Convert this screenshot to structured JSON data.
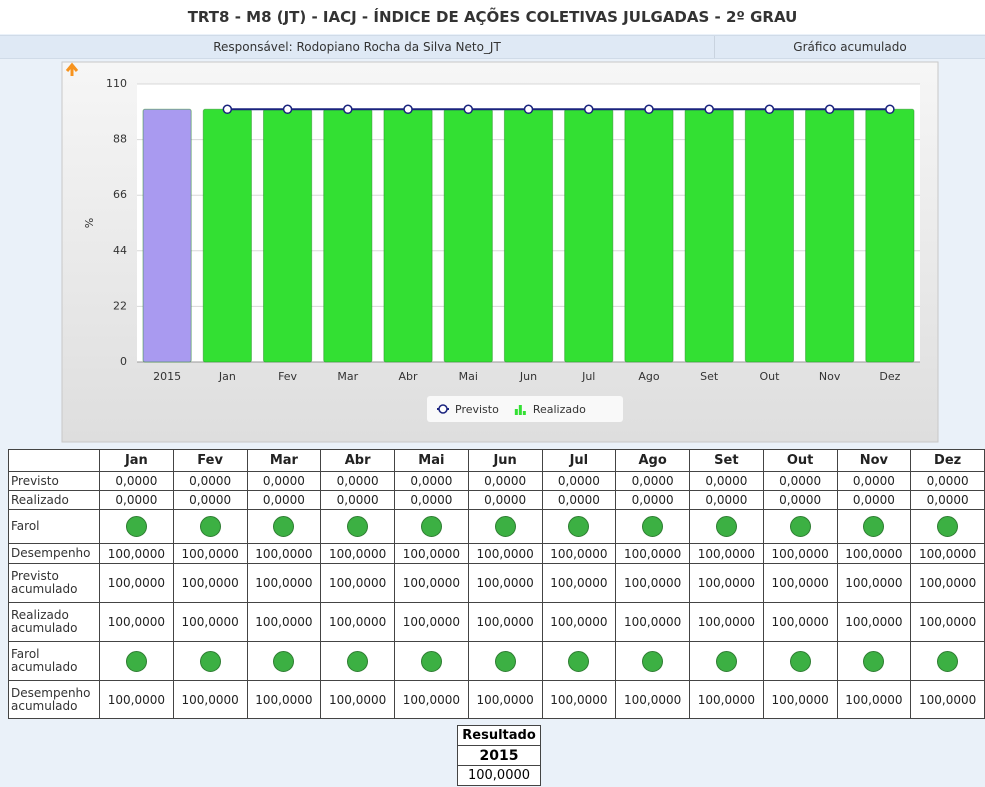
{
  "header": {
    "title": "TRT8 - M8 (JT) - IACJ - ÍNDICE DE AÇÕES COLETIVAS JULGADAS - 2º GRAU",
    "responsible": "Responsável: Rodopiano Rocha da Silva Neto_JT",
    "mode": "Gráfico acumulado"
  },
  "chart_data": {
    "type": "bar",
    "y_label": "%",
    "categories": [
      "2015",
      "Jan",
      "Fev",
      "Mar",
      "Abr",
      "Mai",
      "Jun",
      "Jul",
      "Ago",
      "Set",
      "Out",
      "Nov",
      "Dez"
    ],
    "series": [
      {
        "name": "Realizado",
        "type": "bar",
        "color": "#33e033",
        "colors": [
          "#a99af0",
          "#33e033",
          "#33e033",
          "#33e033",
          "#33e033",
          "#33e033",
          "#33e033",
          "#33e033",
          "#33e033",
          "#33e033",
          "#33e033",
          "#33e033",
          "#33e033"
        ],
        "values": [
          100,
          100,
          100,
          100,
          100,
          100,
          100,
          100,
          100,
          100,
          100,
          100,
          100
        ]
      },
      {
        "name": "Previsto",
        "type": "line",
        "color": "#1a237e",
        "values": [
          null,
          100,
          100,
          100,
          100,
          100,
          100,
          100,
          100,
          100,
          100,
          100,
          100
        ]
      }
    ],
    "ylim": [
      0,
      110
    ],
    "yticks": [
      0,
      22,
      44,
      66,
      88,
      110
    ],
    "grid": true
  },
  "table": {
    "columns": [
      "Jan",
      "Fev",
      "Mar",
      "Abr",
      "Mai",
      "Jun",
      "Jul",
      "Ago",
      "Set",
      "Out",
      "Nov",
      "Dez"
    ],
    "rows": [
      {
        "label": "Previsto",
        "cells": [
          "0,0000",
          "0,0000",
          "0,0000",
          "0,0000",
          "0,0000",
          "0,0000",
          "0,0000",
          "0,0000",
          "0,0000",
          "0,0000",
          "0,0000",
          "0,0000"
        ]
      },
      {
        "label": "Realizado",
        "cells": [
          "0,0000",
          "0,0000",
          "0,0000",
          "0,0000",
          "0,0000",
          "0,0000",
          "0,0000",
          "0,0000",
          "0,0000",
          "0,0000",
          "0,0000",
          "0,0000"
        ]
      },
      {
        "label": "Farol",
        "farol": true
      },
      {
        "label": "Desempenho",
        "cells": [
          "100,0000",
          "100,0000",
          "100,0000",
          "100,0000",
          "100,0000",
          "100,0000",
          "100,0000",
          "100,0000",
          "100,0000",
          "100,0000",
          "100,0000",
          "100,0000"
        ]
      },
      {
        "label": "Previsto acumulado",
        "cells": [
          "100,0000",
          "100,0000",
          "100,0000",
          "100,0000",
          "100,0000",
          "100,0000",
          "100,0000",
          "100,0000",
          "100,0000",
          "100,0000",
          "100,0000",
          "100,0000"
        ]
      },
      {
        "label": "Realizado acumulado",
        "cells": [
          "100,0000",
          "100,0000",
          "100,0000",
          "100,0000",
          "100,0000",
          "100,0000",
          "100,0000",
          "100,0000",
          "100,0000",
          "100,0000",
          "100,0000",
          "100,0000"
        ]
      },
      {
        "label": "Farol acumulado",
        "farol": true
      },
      {
        "label": "Desempenho acumulado",
        "cells": [
          "100,0000",
          "100,0000",
          "100,0000",
          "100,0000",
          "100,0000",
          "100,0000",
          "100,0000",
          "100,0000",
          "100,0000",
          "100,0000",
          "100,0000",
          "100,0000"
        ]
      }
    ]
  },
  "result": {
    "title": "Resultado",
    "year": "2015",
    "value": "100,0000"
  }
}
